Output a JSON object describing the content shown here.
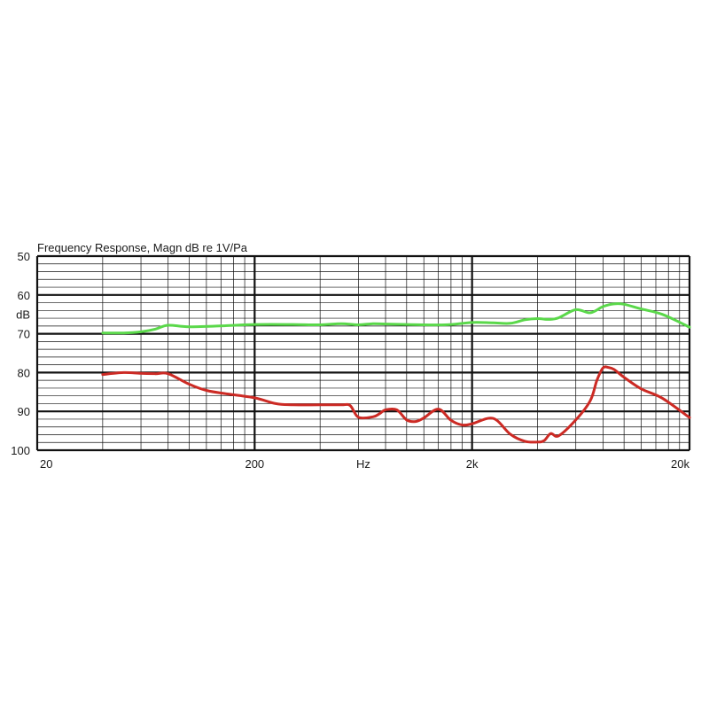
{
  "chart_data": {
    "type": "line",
    "title": "Frequency Response, Magn  dB re 1V/Pa",
    "xlabel": "Hz",
    "ylabel": "dB",
    "x_scale": "log",
    "xlim": [
      20,
      20000
    ],
    "ylim": [
      50,
      100
    ],
    "y_inverted": true,
    "x_tick_labels": [
      {
        "value": 20,
        "label": "20"
      },
      {
        "value": 200,
        "label": "200"
      },
      {
        "value": 2000,
        "label": "2k"
      },
      {
        "value": 20000,
        "label": "20k"
      }
    ],
    "x_axis_unit": {
      "value": 632,
      "label": "Hz"
    },
    "y_tick_labels": [
      {
        "value": 50,
        "label": "50"
      },
      {
        "value": 60,
        "label": "60"
      },
      {
        "value": 70,
        "label": "70"
      },
      {
        "value": 80,
        "label": "80"
      },
      {
        "value": 90,
        "label": "90"
      },
      {
        "value": 100,
        "label": "100"
      }
    ],
    "y_axis_unit": {
      "value": 65,
      "label": "dB"
    },
    "grid": true,
    "series": [
      {
        "color": "#5ad84a",
        "x": [
          40,
          50,
          60,
          70,
          80,
          100,
          150,
          200,
          300,
          400,
          500,
          600,
          700,
          800,
          1000,
          1500,
          2000,
          2500,
          3000,
          3500,
          4000,
          4500,
          5000,
          6000,
          7000,
          8000,
          9000,
          10000,
          12000,
          15000,
          20000
        ],
        "y": [
          69.8,
          69.8,
          69.5,
          68.8,
          67.8,
          68.2,
          67.9,
          67.6,
          67.6,
          67.7,
          67.4,
          67.7,
          67.4,
          67.5,
          67.6,
          67.7,
          67.1,
          67.2,
          67.3,
          66.4,
          66.1,
          66.3,
          65.9,
          63.8,
          64.6,
          63.0,
          62.3,
          62.4,
          63.6,
          65.0,
          68.3
        ]
      },
      {
        "color": "#cc2a24",
        "x": [
          40,
          50,
          60,
          70,
          80,
          100,
          120,
          150,
          200,
          250,
          300,
          400,
          500,
          550,
          600,
          700,
          750,
          800,
          900,
          1000,
          1100,
          1200,
          1400,
          1600,
          1800,
          2000,
          2500,
          3000,
          3500,
          4000,
          4300,
          4600,
          5000,
          6000,
          7000,
          7500,
          8000,
          8500,
          9000,
          10000,
          12000,
          15000,
          20000
        ],
        "y": [
          80.5,
          80.0,
          80.2,
          80.3,
          80.3,
          83.0,
          84.6,
          85.5,
          86.5,
          88.0,
          88.3,
          88.3,
          88.3,
          88.5,
          91.5,
          91.4,
          90.6,
          89.6,
          89.6,
          92.2,
          92.6,
          91.7,
          89.4,
          92.3,
          93.5,
          93.2,
          91.8,
          95.9,
          97.7,
          97.9,
          97.5,
          95.7,
          96.3,
          92.2,
          87.2,
          82.0,
          78.8,
          78.7,
          79.2,
          81.2,
          84.2,
          86.6,
          91.6
        ]
      }
    ]
  }
}
